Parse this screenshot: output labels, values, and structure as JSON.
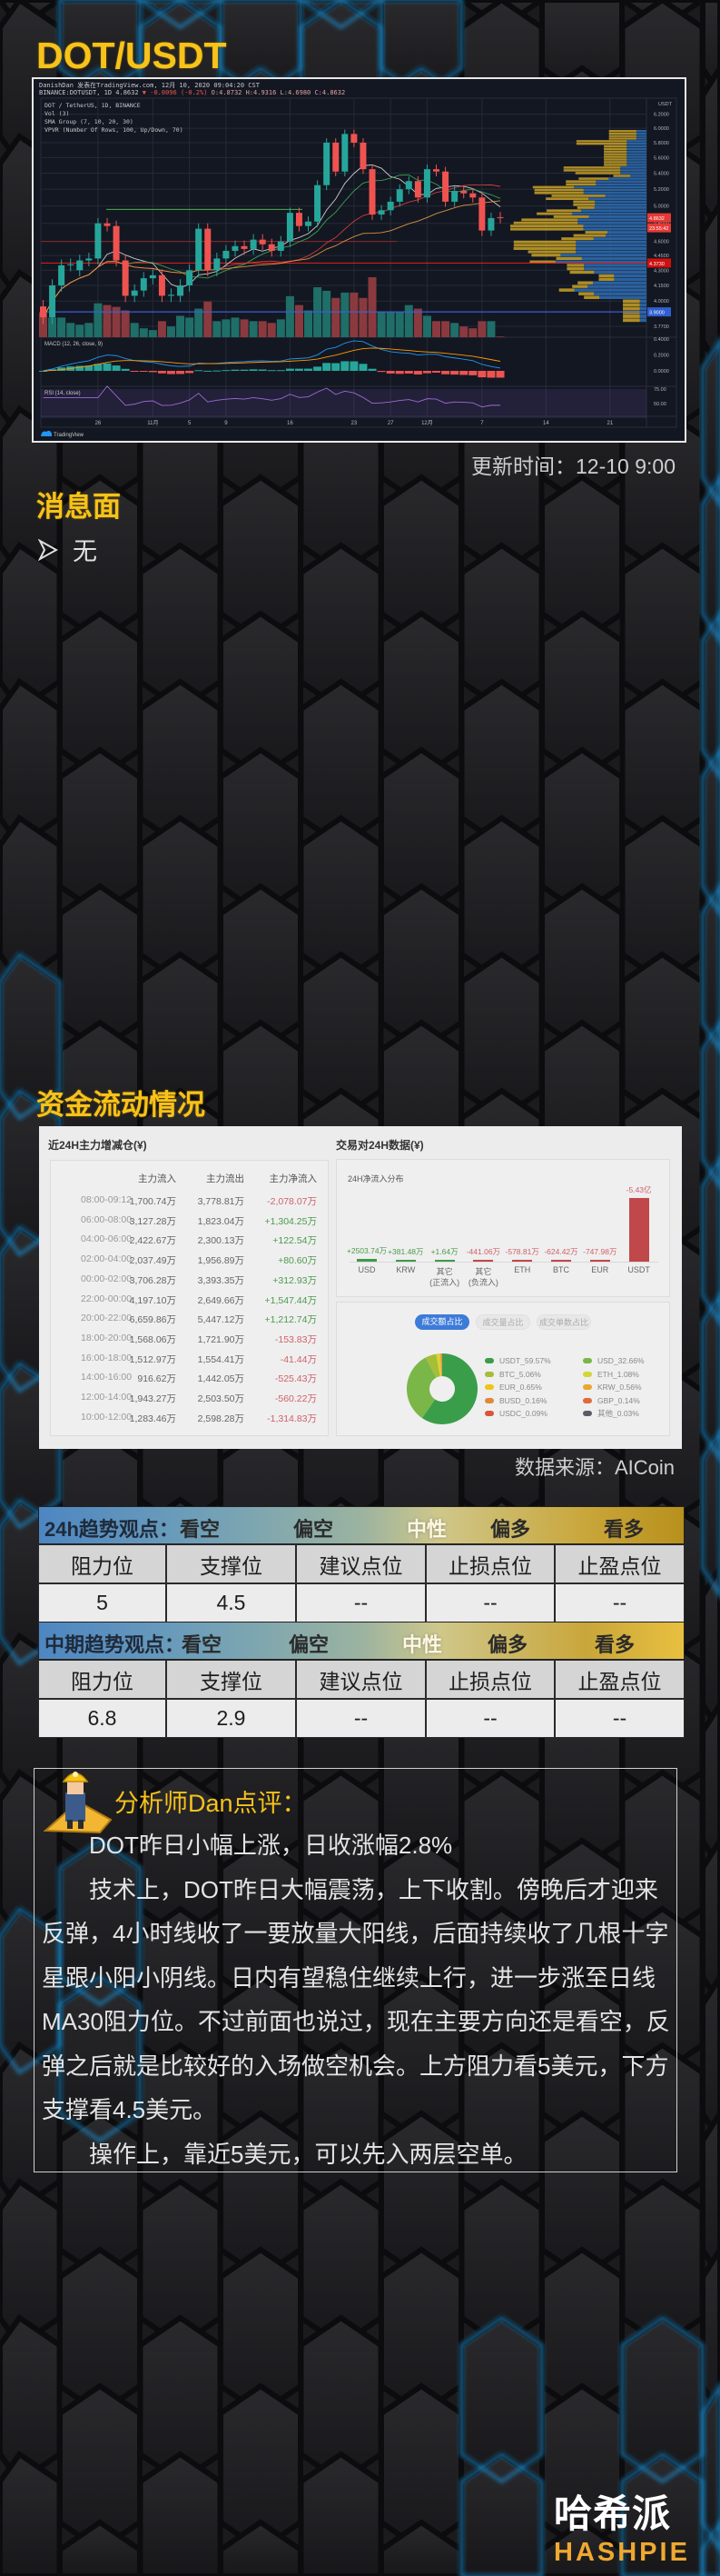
{
  "header": {
    "title": "DOT/USDT"
  },
  "price_chart": {
    "author_line": "DanishDan 发表在TradingView.com, 12月 10, 2020 09:04:20 CST",
    "symbol_line": "BINANCE:DOTUSDT, 1D 4.8632",
    "change": "▼ -0.0096 (-0.2%)",
    "ohlc": [
      "O:4.8732",
      "H:4.9316",
      "L:4.6980",
      "C:4.8632"
    ],
    "legend": [
      "DOT / TetherUS, 1D, BINANCE",
      "Vol (3)",
      "SMA Group (7, 10, 20, 30)",
      "VPVR (Number Of Rows, 100, Up/Down, 70)"
    ],
    "macd_label": "MACD (12, 26, close, 9)",
    "rsi_label": "RSI (14, close)",
    "currency": "USDT",
    "price_scale": "log",
    "price_ticks": [
      "6.2000",
      "6.0000",
      "5.8000",
      "5.6000",
      "5.4000",
      "5.2000",
      "5.0000",
      "4.8000",
      "4.6000",
      "4.4500",
      "4.3000",
      "4.1500",
      "4.0000",
      "3.7700"
    ],
    "macd_ticks": [
      "0.4000",
      "0.2000",
      "0.0000"
    ],
    "rsi_ticks": [
      "75.00",
      "50.00"
    ],
    "date_labels": [
      "26",
      "11月",
      "5",
      "9",
      "16",
      "23",
      "27",
      "12月",
      "7",
      "14",
      "21"
    ],
    "flags": {
      "last": "4.8632",
      "countdown": "23:55:42",
      "red_level": "4.3730",
      "blue_level": "3.9000"
    },
    "candles": [
      [
        3.95,
        3.85
      ],
      [
        3.85,
        4.15
      ],
      [
        4.15,
        4.35
      ],
      [
        4.35,
        4.36
      ],
      [
        4.3,
        4.4
      ],
      [
        4.4,
        4.42
      ],
      [
        4.42,
        4.8
      ],
      [
        4.8,
        4.77
      ],
      [
        4.77,
        4.4
      ],
      [
        4.4,
        4.05
      ],
      [
        4.05,
        4.1
      ],
      [
        4.1,
        4.22
      ],
      [
        4.22,
        4.25
      ],
      [
        4.25,
        4.05
      ],
      [
        4.05,
        4.06
      ],
      [
        4.05,
        4.15
      ],
      [
        4.15,
        4.3
      ],
      [
        4.3,
        4.74
      ],
      [
        4.74,
        4.3
      ],
      [
        4.3,
        4.42
      ],
      [
        4.42,
        4.5
      ],
      [
        4.5,
        4.55
      ],
      [
        4.55,
        4.52
      ],
      [
        4.52,
        4.62
      ],
      [
        4.62,
        4.57
      ],
      [
        4.57,
        4.5
      ],
      [
        4.5,
        4.6
      ],
      [
        4.6,
        4.92
      ],
      [
        4.92,
        4.77
      ],
      [
        4.77,
        4.82
      ],
      [
        4.82,
        5.25
      ],
      [
        5.25,
        5.8
      ],
      [
        5.8,
        5.42
      ],
      [
        5.42,
        5.92
      ],
      [
        5.92,
        5.8
      ],
      [
        5.8,
        5.45
      ],
      [
        5.45,
        4.9
      ],
      [
        4.9,
        4.95
      ],
      [
        4.95,
        5.05
      ],
      [
        5.05,
        5.2
      ],
      [
        5.2,
        5.3
      ],
      [
        5.3,
        5.1
      ],
      [
        5.1,
        5.45
      ],
      [
        5.45,
        5.42
      ],
      [
        5.42,
        5.05
      ],
      [
        5.05,
        5.18
      ],
      [
        5.18,
        5.15
      ],
      [
        5.15,
        5.1
      ],
      [
        5.1,
        4.72
      ],
      [
        4.72,
        4.86
      ],
      [
        4.87,
        4.86
      ]
    ],
    "volume_relative": [
      70,
      55,
      55,
      40,
      35,
      40,
      95,
      90,
      85,
      75,
      40,
      25,
      20,
      45,
      30,
      60,
      55,
      80,
      100,
      45,
      50,
      55,
      50,
      45,
      45,
      40,
      50,
      115,
      90,
      75,
      140,
      130,
      110,
      125,
      125,
      110,
      168,
      70,
      70,
      70,
      90,
      80,
      60,
      45,
      45,
      40,
      30,
      25,
      45,
      45,
      2
    ],
    "branding": "TradingView",
    "colors": {
      "up": "#26a69a",
      "down": "#ef5350",
      "background": "#131722"
    }
  },
  "update_time": "更新时间：12-10 9:00",
  "news": {
    "title": "消息面",
    "items": [
      "无"
    ]
  },
  "fund_flow": {
    "title": "资金流动情况",
    "left": {
      "title": "近24H主力增减仓(¥)",
      "columns": [
        "",
        "主力流入",
        "主力流出",
        "主力净流入"
      ],
      "rows": [
        [
          "08:00-09:12",
          "1,700.74万",
          "3,778.81万",
          "-2,078.07万"
        ],
        [
          "06:00-08:00",
          "3,127.28万",
          "1,823.04万",
          "+1,304.25万"
        ],
        [
          "04:00-06:00",
          "2,422.67万",
          "2,300.13万",
          "+122.54万"
        ],
        [
          "02:00-04:00",
          "2,037.49万",
          "1,956.89万",
          "+80.60万"
        ],
        [
          "00:00-02:00",
          "3,706.28万",
          "3,393.35万",
          "+312.93万"
        ],
        [
          "22:00-00:00",
          "4,197.10万",
          "2,649.66万",
          "+1,547.44万"
        ],
        [
          "20:00-22:00",
          "6,659.86万",
          "5,447.12万",
          "+1,212.74万"
        ],
        [
          "18:00-20:00",
          "1,568.06万",
          "1,721.90万",
          "-153.83万"
        ],
        [
          "16:00-18:00",
          "1,512.97万",
          "1,554.41万",
          "-41.44万"
        ],
        [
          "14:00-16:00",
          "916.62万",
          "1,442.05万",
          "-525.43万"
        ],
        [
          "12:00-14:00",
          "1,943.27万",
          "2,503.50万",
          "-560.22万"
        ],
        [
          "10:00-12:00",
          "1,283.46万",
          "2,598.28万",
          "-1,314.83万"
        ]
      ]
    },
    "right": {
      "title": "交易对24H数据(¥)",
      "bar_title": "24H净流入分布",
      "bars": [
        {
          "label": "USD",
          "sub": "",
          "value_text": "+2503.74万",
          "value": 2503.74
        },
        {
          "label": "KRW",
          "sub": "",
          "value_text": "+381.48万",
          "value": 381.48
        },
        {
          "label": "其它",
          "sub": "(正流入)",
          "value_text": "+1.64万",
          "value": 1.64
        },
        {
          "label": "其它",
          "sub": "(负流入)",
          "value_text": "-441.06万",
          "value": -441.06
        },
        {
          "label": "ETH",
          "sub": "",
          "value_text": "-578.81万",
          "value": -578.81
        },
        {
          "label": "BTC",
          "sub": "",
          "value_text": "-624.42万",
          "value": -624.42
        },
        {
          "label": "EUR",
          "sub": "",
          "value_text": "-747.98万",
          "value": -747.98
        },
        {
          "label": "USDT",
          "sub": "",
          "value_text": "-5.43亿",
          "value": -54300
        }
      ],
      "tabs": [
        "成交额占比",
        "成交量占比",
        "成交单数占比"
      ],
      "active_tab": 0,
      "pie": [
        {
          "label": "USDT_59.57%",
          "pct": 59.57,
          "color": "#3a9d4a"
        },
        {
          "label": "USD_32.66%",
          "pct": 32.66,
          "color": "#7ab648"
        },
        {
          "label": "BTC_5.06%",
          "pct": 5.06,
          "color": "#a5bd37"
        },
        {
          "label": "ETH_1.08%",
          "pct": 1.08,
          "color": "#d2d636"
        },
        {
          "label": "EUR_0.65%",
          "pct": 0.65,
          "color": "#f0c419"
        },
        {
          "label": "KRW_0.56%",
          "pct": 0.56,
          "color": "#e8a82a"
        },
        {
          "label": "BUSD_0.16%",
          "pct": 0.16,
          "color": "#e0883a"
        },
        {
          "label": "GBP_0.14%",
          "pct": 0.14,
          "color": "#e06a3a"
        },
        {
          "label": "USDC_0.09%",
          "pct": 0.09,
          "color": "#d9553a"
        },
        {
          "label": "其他_0.03%",
          "pct": 0.03,
          "color": "#5a5a68"
        }
      ]
    },
    "source": "数据来源：AICoin"
  },
  "trend_tables": [
    {
      "title": "24h趋势观点：",
      "scale": [
        "看空",
        "偏空",
        "中性",
        "偏多",
        "看多"
      ],
      "columns": [
        "阻力位",
        "支撑位",
        "建议点位",
        "止损点位",
        "止盈点位"
      ],
      "values": [
        "5",
        "4.5",
        "--",
        "--",
        "--"
      ]
    },
    {
      "title": "中期趋势观点：",
      "scale": [
        "看空",
        "偏空",
        "中性",
        "偏多",
        "看多"
      ],
      "columns": [
        "阻力位",
        "支撑位",
        "建议点位",
        "止损点位",
        "止盈点位"
      ],
      "values": [
        "6.8",
        "2.9",
        "--",
        "--",
        "--"
      ]
    }
  ],
  "analyst": {
    "title": "分析师Dan点评：",
    "paragraphs": [
      "DOT昨日小幅上涨，日收涨幅2.8%",
      "技术上，DOT昨日大幅震荡，上下收割。傍晚后才迎来反弹，4小时线收了一要放量大阳线，后面持续收了几根十字星跟小阳小阴线。日内有望稳住继续上行，进一步涨至日线MA30阻力位。不过前面也说过，现在主要方向还是看空，反弹之后就是比较好的入场做空机会。上方阻力看5美元，下方支撑看4.5美元。",
      "操作上，靠近5美元，可以先入两层空单。"
    ]
  },
  "logo": {
    "cn": "哈希派",
    "en": "HASHPIE"
  },
  "colors": {
    "accent": "#f7c21a",
    "glow": "#1f86c4"
  }
}
